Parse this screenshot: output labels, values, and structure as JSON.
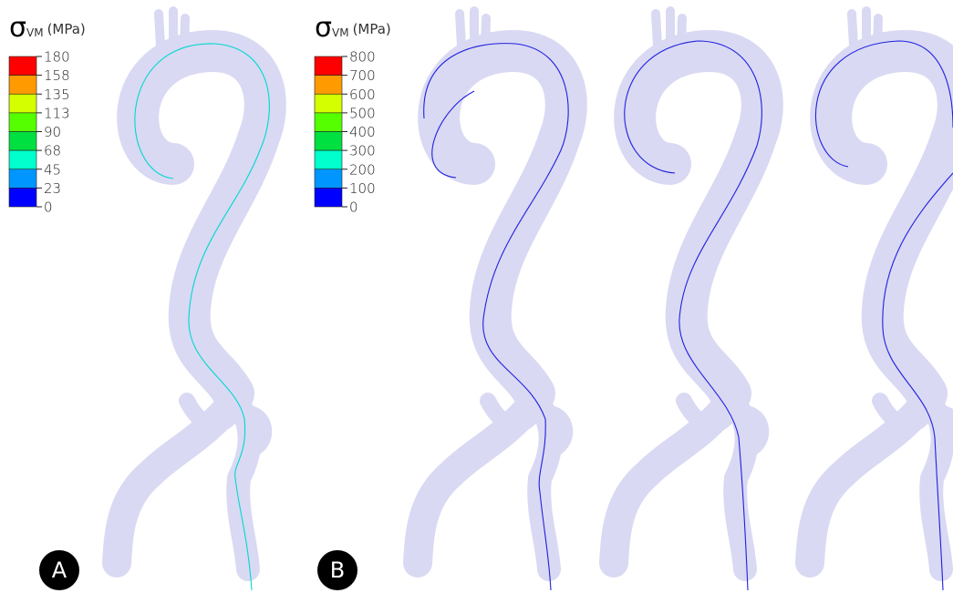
{
  "colors": [
    "#ff0000",
    "#ff9a00",
    "#d4ff00",
    "#55ff00",
    "#00e040",
    "#00ffcc",
    "#0096ff",
    "#0000ff"
  ],
  "legends": [
    {
      "symbol": "σ",
      "subscript": "VM",
      "unit": "(MPa)",
      "labels": [
        180,
        158,
        135,
        113,
        90,
        68,
        45,
        23,
        0
      ]
    },
    {
      "symbol": "σ",
      "subscript": "VM",
      "unit": "(MPa)",
      "labels": [
        800,
        700,
        600,
        500,
        400,
        300,
        200,
        100,
        0
      ]
    }
  ],
  "panels": [
    "A",
    "B"
  ]
}
